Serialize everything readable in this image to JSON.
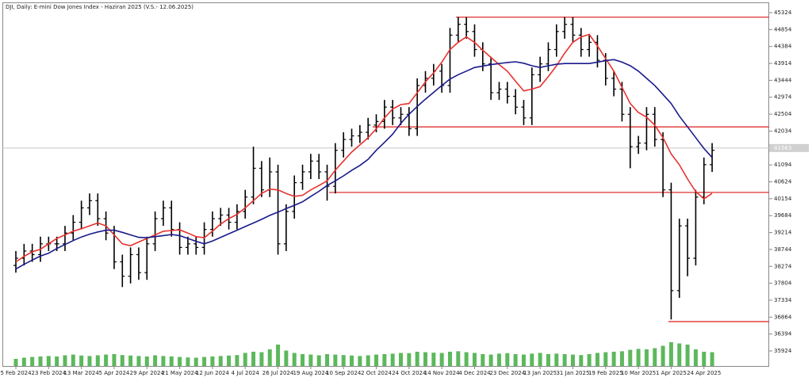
{
  "chart_data": {
    "type": "ohlc",
    "title": "DJI, Daily:  E-mini Dow Jones Index  - Haziran 2025 (V.S.- 12.06.2025)",
    "categories": [
      "5 Feb 2024",
      null,
      null,
      null,
      "23 Feb 2024",
      null,
      null,
      null,
      "13 Mar 2024",
      null,
      null,
      null,
      "5 Apr 2024",
      null,
      null,
      null,
      "29 Apr 2024",
      null,
      null,
      null,
      "21 May 2024",
      null,
      null,
      null,
      "12 Jun 2024",
      null,
      null,
      null,
      "4 Jul 2024",
      null,
      null,
      null,
      "26 Jul 2024",
      null,
      null,
      null,
      "19 Aug 2024",
      null,
      null,
      null,
      "10 Sep 2024",
      null,
      null,
      null,
      "2 Oct 2024",
      null,
      null,
      null,
      "24 Oct 2024",
      null,
      null,
      null,
      "14 Nov 2024",
      null,
      null,
      null,
      "4 Dec 2024",
      null,
      null,
      null,
      "23 Dec 2024",
      null,
      null,
      null,
      "13 Jan 2025",
      null,
      null,
      null,
      "31 Jan 2025",
      null,
      null,
      null,
      "19 Feb 2025",
      null,
      null,
      null,
      "10 Mar 2025",
      null,
      null,
      null,
      "1 Apr 2025",
      null,
      null,
      null,
      "24 Apr 2025",
      null
    ],
    "open": [
      38300,
      38500,
      38700,
      38600,
      38900,
      38900,
      38900,
      39200,
      39500,
      39900,
      40100,
      39600,
      39200,
      38400,
      38000,
      38600,
      38100,
      38900,
      39600,
      39900,
      39300,
      38800,
      38900,
      38800,
      39300,
      39600,
      39700,
      39500,
      39800,
      40200,
      41000,
      40400,
      40900,
      38900,
      39800,
      40600,
      40900,
      41200,
      40900,
      40500,
      41500,
      41800,
      41900,
      42000,
      42200,
      42300,
      42700,
      42400,
      42500,
      42100,
      43300,
      43500,
      43700,
      43300,
      44700,
      45000,
      44800,
      44300,
      43900,
      43100,
      43200,
      43000,
      42700,
      42400,
      43600,
      43900,
      44300,
      44800,
      45000,
      44700,
      44300,
      44500,
      44000,
      43500,
      43200,
      42500,
      41600,
      41700,
      42500,
      41800,
      40400,
      37600,
      39400,
      38500,
      40200,
      41100
    ],
    "high": [
      38700,
      38900,
      38900,
      39100,
      39100,
      39100,
      39400,
      39700,
      40100,
      40300,
      40300,
      39800,
      39400,
      38600,
      38800,
      38800,
      39100,
      39800,
      40100,
      40100,
      39500,
      39100,
      39100,
      39500,
      39800,
      39900,
      39900,
      40000,
      40400,
      41600,
      41200,
      41300,
      41100,
      40000,
      40800,
      41100,
      41400,
      41400,
      41100,
      41700,
      42000,
      42100,
      42200,
      42400,
      42500,
      42900,
      42900,
      42700,
      42700,
      43500,
      43700,
      43900,
      43900,
      44900,
      45200,
      45200,
      45000,
      44500,
      44100,
      43400,
      43400,
      43200,
      42900,
      43800,
      44100,
      44500,
      45000,
      45200,
      45200,
      44900,
      44700,
      44700,
      44200,
      43700,
      43400,
      42700,
      41900,
      42700,
      42700,
      42000,
      40600,
      39600,
      39600,
      40400,
      41300,
      41700
    ],
    "low": [
      38100,
      38300,
      38400,
      38400,
      38700,
      38700,
      38700,
      39000,
      39300,
      39700,
      39400,
      39000,
      38200,
      37700,
      37800,
      37900,
      37900,
      38700,
      39400,
      39100,
      38600,
      38600,
      38600,
      38600,
      39100,
      39400,
      39300,
      39300,
      39600,
      40000,
      40200,
      40200,
      38600,
      38700,
      39600,
      40400,
      40700,
      40700,
      40100,
      40300,
      41300,
      41600,
      41700,
      41800,
      42000,
      42100,
      42200,
      42200,
      41900,
      41900,
      43100,
      43300,
      43100,
      43100,
      44500,
      44600,
      44100,
      43700,
      42900,
      42900,
      42800,
      42500,
      42200,
      42200,
      43400,
      43700,
      44100,
      44600,
      44500,
      44100,
      44100,
      43800,
      43300,
      43000,
      42300,
      41000,
      41400,
      41500,
      41600,
      40200,
      36800,
      37400,
      38000,
      38300,
      40000,
      40900
    ],
    "close": [
      38500,
      38700,
      38600,
      38900,
      38900,
      38900,
      39200,
      39500,
      39900,
      40100,
      39600,
      39200,
      38400,
      38000,
      38600,
      38100,
      38900,
      39600,
      39900,
      39300,
      38800,
      38900,
      38800,
      39300,
      39600,
      39700,
      39500,
      39800,
      40200,
      41000,
      40400,
      40900,
      38900,
      39800,
      40600,
      40900,
      41200,
      40900,
      40500,
      41500,
      41800,
      41900,
      42000,
      42200,
      42300,
      42700,
      42400,
      42500,
      42100,
      43300,
      43500,
      43700,
      43300,
      44700,
      45000,
      44800,
      44300,
      43900,
      43100,
      43200,
      43000,
      42700,
      42400,
      43600,
      43900,
      44300,
      44800,
      45000,
      44700,
      44300,
      44500,
      44000,
      43500,
      43200,
      42500,
      41600,
      41700,
      42500,
      41800,
      40400,
      37600,
      39400,
      38500,
      40200,
      41100,
      41500
    ],
    "bar_color": "#000000",
    "volume": [
      30,
      35,
      38,
      40,
      42,
      40,
      45,
      48,
      44,
      42,
      45,
      48,
      50,
      46,
      44,
      42,
      40,
      45,
      42,
      40,
      38,
      36,
      35,
      38,
      40,
      42,
      44,
      46,
      55,
      60,
      58,
      70,
      90,
      65,
      55,
      50,
      48,
      45,
      50,
      48,
      46,
      44,
      42,
      45,
      48,
      50,
      52,
      55,
      54,
      60,
      58,
      56,
      55,
      60,
      62,
      58,
      55,
      50,
      48,
      52,
      54,
      50,
      48,
      52,
      55,
      50,
      52,
      50,
      48,
      46,
      50,
      55,
      58,
      60,
      62,
      68,
      72,
      70,
      75,
      85,
      100,
      95,
      90,
      70,
      60,
      58
    ],
    "volume_lim": [
      0,
      100
    ],
    "volume_color": "#5cb85c",
    "moving_averages": [
      {
        "color": "#e8322f",
        "values": [
          38400,
          38550,
          38680,
          38750,
          38900,
          39050,
          39150,
          39250,
          39320,
          39400,
          39480,
          39400,
          39150,
          38900,
          38850,
          38950,
          39050,
          39150,
          39250,
          39270,
          39290,
          39200,
          39100,
          39070,
          39250,
          39450,
          39600,
          39720,
          39900,
          40100,
          40300,
          40420,
          40400,
          40300,
          40220,
          40250,
          40400,
          40520,
          40650,
          40950,
          41200,
          41450,
          41650,
          41850,
          42100,
          42400,
          42650,
          42770,
          42800,
          43100,
          43400,
          43650,
          43950,
          44300,
          44500,
          44650,
          44500,
          44280,
          44080,
          43880,
          43700,
          43420,
          43150,
          43200,
          43270,
          43550,
          43850,
          44200,
          44500,
          44650,
          44720,
          44400,
          44050,
          43700,
          43250,
          42800,
          42550,
          42420,
          42200,
          41850,
          41400,
          41100,
          40700,
          40350,
          40150,
          40300
        ]
      },
      {
        "color": "#1a1a8c",
        "values": [
          38200,
          38330,
          38450,
          38560,
          38640,
          38770,
          38880,
          38990,
          39090,
          39170,
          39230,
          39280,
          39280,
          39220,
          39150,
          39080,
          39070,
          39100,
          39130,
          39160,
          39130,
          39050,
          38970,
          38900,
          38980,
          39080,
          39180,
          39280,
          39380,
          39480,
          39580,
          39690,
          39780,
          39880,
          39970,
          40070,
          40220,
          40360,
          40520,
          40650,
          40790,
          40940,
          41080,
          41250,
          41500,
          41720,
          41950,
          42250,
          42500,
          42720,
          42920,
          43110,
          43300,
          43480,
          43600,
          43700,
          43800,
          43840,
          43880,
          43910,
          43940,
          43960,
          43920,
          43850,
          43800,
          43850,
          43890,
          43910,
          43910,
          43910,
          43910,
          43950,
          43990,
          44020,
          43950,
          43850,
          43700,
          43500,
          43300,
          43050,
          42800,
          42450,
          42150,
          41850,
          41550,
          41300
        ]
      }
    ],
    "levels": [
      {
        "value": 45200,
        "color": "#e03030"
      },
      {
        "value": 42150,
        "color": "#e03030"
      },
      {
        "value": 40330,
        "color": "#e03030"
      },
      {
        "value": 36740,
        "color": "#e03030"
      }
    ],
    "last_price": 41563,
    "ylim": [
      35506,
      45566
    ],
    "yticks": [
      45324,
      44854,
      44384,
      43914,
      43444,
      42974,
      42504,
      42034,
      41094,
      40624,
      40154,
      39684,
      39214,
      38744,
      38274,
      37804,
      37334,
      36864,
      36394,
      35924
    ]
  }
}
